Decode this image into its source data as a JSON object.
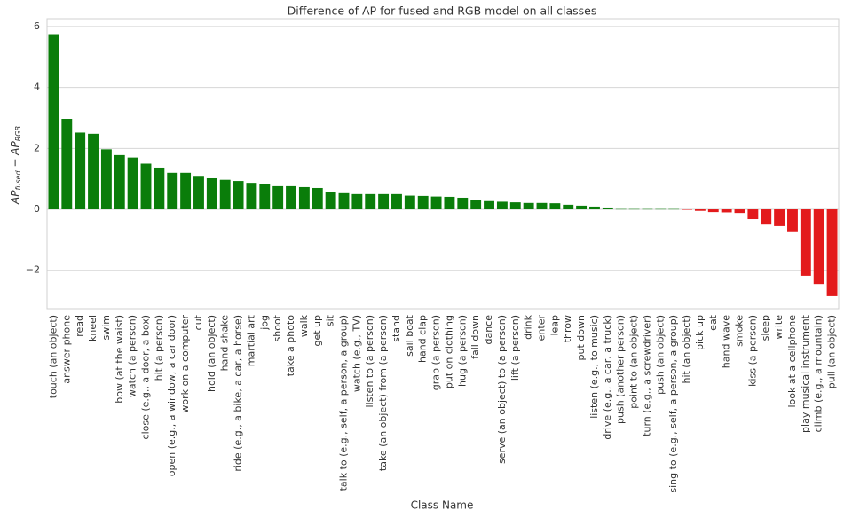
{
  "chart_data": {
    "type": "bar",
    "title": "Difference of AP for fused and RGB model on all classes",
    "xlabel": "Class Name",
    "ylabel_parts": [
      "AP",
      "fused",
      " − AP",
      "RGB"
    ],
    "categories": [
      "touch (an object)",
      "answer phone",
      "read",
      "kneel",
      "swim",
      "bow (at the waist)",
      "watch (a person)",
      "close (e.g., a door, a box)",
      "hit (a person)",
      "open (e.g., a window, a car door)",
      "work on a computer",
      "cut",
      "hold (an object)",
      "hand shake",
      "ride (e.g., a bike, a car, a horse)",
      "martial art",
      "jog",
      "shoot",
      "take a photo",
      "walk",
      "get up",
      "sit",
      "talk to (e.g., self, a person, a group)",
      "watch (e.g., TV)",
      "listen to (a person)",
      "take (an object) from (a person)",
      "stand",
      "sail boat",
      "hand clap",
      "grab (a person)",
      "put on clothing",
      "hug (a person)",
      "fall down",
      "dance",
      "serve (an object) to (a person)",
      "lift (a person)",
      "drink",
      "enter",
      "leap",
      "throw",
      "put down",
      "listen (e.g., to music)",
      "drive (e.g., a car, a truck)",
      "push (another person)",
      "point to (an object)",
      "turn (e.g., a screwdriver)",
      "push (an object)",
      "sing to (e.g., self, a person, a group)",
      "hit (an object)",
      "pick up",
      "eat",
      "hand wave",
      "smoke",
      "kiss (a person)",
      "sleep",
      "write",
      "look at a cellphone",
      "play musical instrument",
      "climb (e.g., a mountain)",
      "pull (an object)"
    ],
    "values": [
      5.75,
      2.97,
      2.52,
      2.48,
      1.97,
      1.78,
      1.7,
      1.5,
      1.37,
      1.2,
      1.2,
      1.1,
      1.02,
      0.97,
      0.93,
      0.87,
      0.84,
      0.76,
      0.76,
      0.73,
      0.7,
      0.58,
      0.53,
      0.5,
      0.5,
      0.5,
      0.5,
      0.45,
      0.44,
      0.42,
      0.41,
      0.38,
      0.3,
      0.27,
      0.25,
      0.23,
      0.21,
      0.21,
      0.2,
      0.15,
      0.12,
      0.09,
      0.06,
      0.01,
      0.01,
      0.01,
      0.01,
      0.01,
      -0.01,
      -0.05,
      -0.09,
      -0.1,
      -0.12,
      -0.32,
      -0.5,
      -0.55,
      -0.72,
      -2.18,
      -2.45,
      -2.85
    ],
    "color_positive": "#0a7d0a",
    "color_negative": "#e31a1c",
    "ylim": [
      -3.26,
      6.26
    ],
    "yticks": [
      {
        "value": -2,
        "label": "−2"
      },
      0,
      2,
      4,
      6
    ],
    "grid": true
  }
}
